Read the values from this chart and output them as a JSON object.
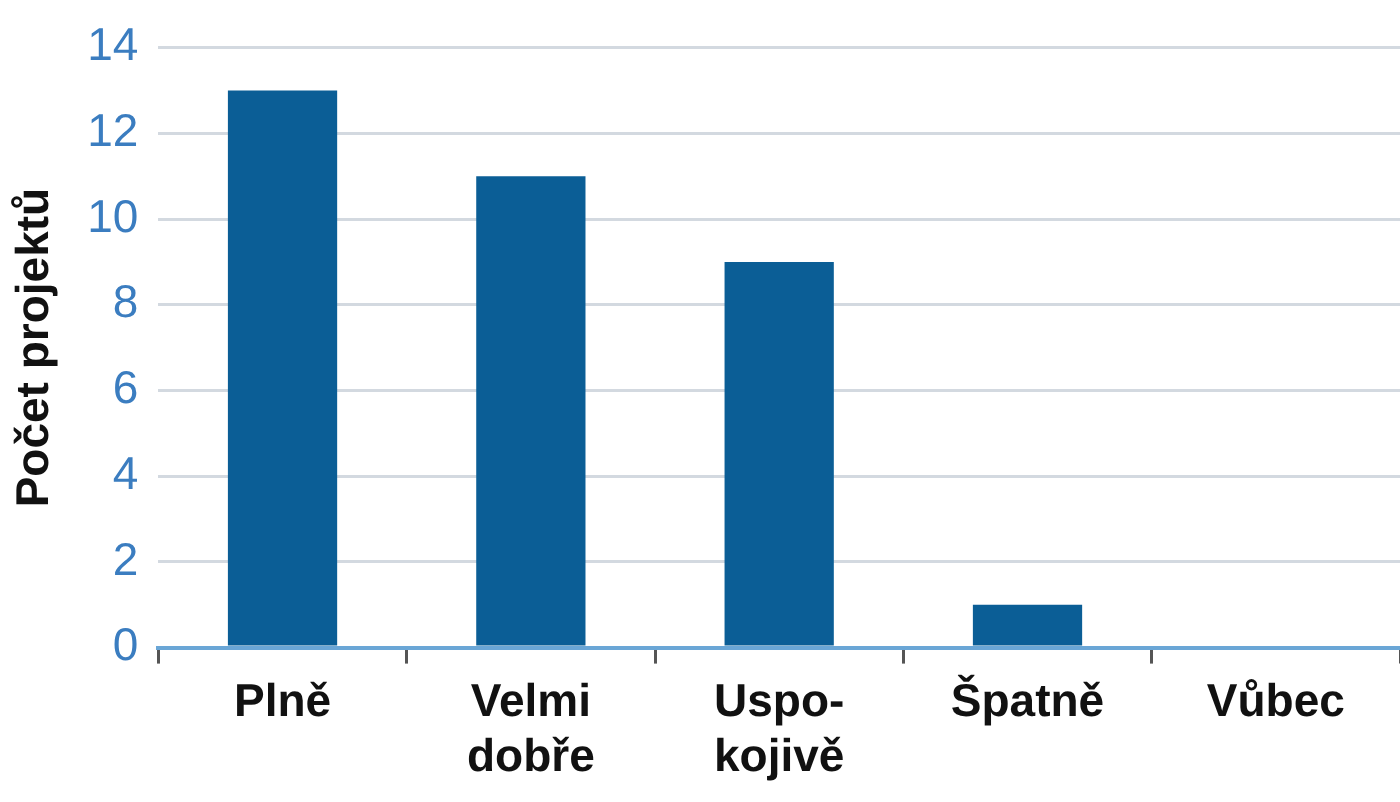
{
  "chart_data": {
    "type": "bar",
    "ylabel": "Počet projektů",
    "categories": [
      "Plně",
      "Velmi\ndobře",
      "Uspo-\nkojivě",
      "Špatně",
      "Vůbec"
    ],
    "values": [
      13,
      11,
      9,
      1,
      0
    ],
    "color": "#0b5e96",
    "ylim": [
      0,
      14
    ],
    "yticks": [
      0,
      2,
      4,
      6,
      8,
      10,
      12,
      14
    ],
    "grid": "y"
  }
}
